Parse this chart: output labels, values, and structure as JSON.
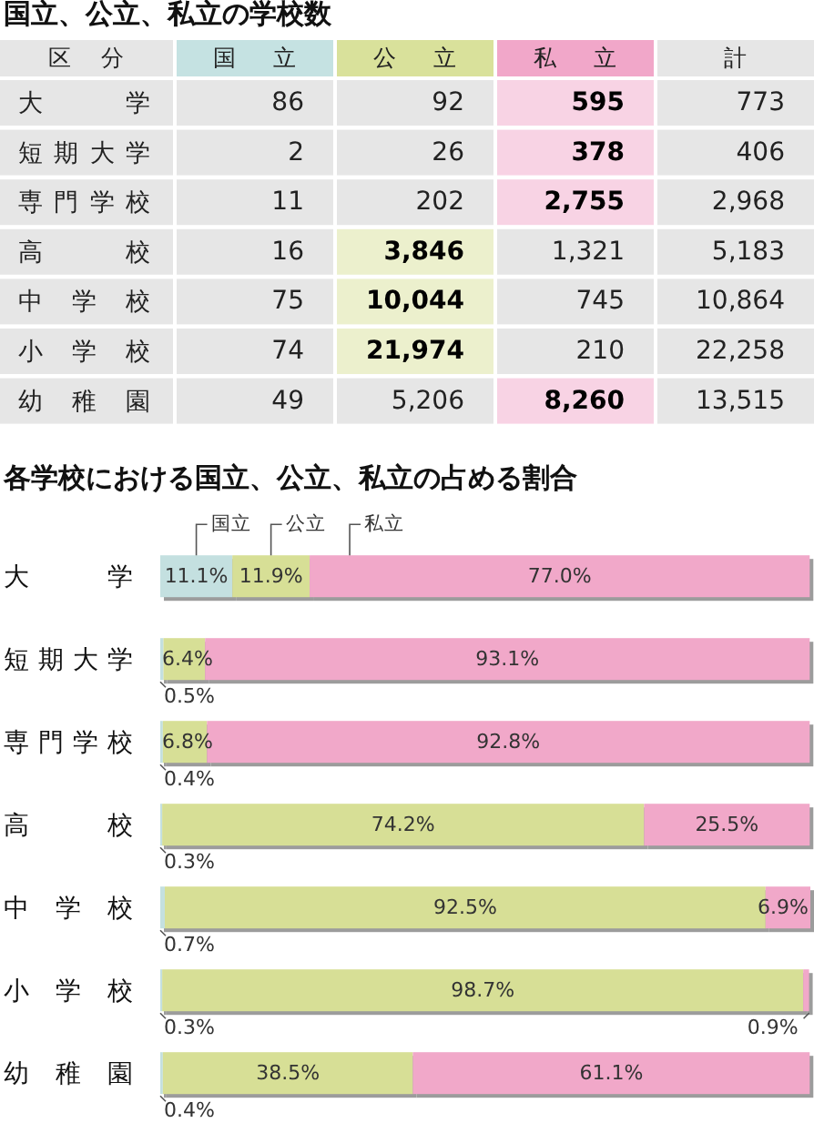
{
  "chart_data": [
    {
      "type": "heatmap",
      "title": "国立、公立、私立の学校数",
      "ylabel": "区分",
      "categories": [
        "国立",
        "公立",
        "私立",
        "計"
      ],
      "colors": [
        "#c5e2e2",
        "#d9e19b",
        "#f1a7c9",
        null
      ],
      "y_categories": [
        "大学",
        "短期大学",
        "専門学校",
        "高校",
        "中学校",
        "小学校",
        "幼稚園"
      ],
      "cells": [
        [
          86,
          92,
          595,
          773
        ],
        [
          2,
          26,
          378,
          406
        ],
        [
          11,
          202,
          2755,
          2968
        ],
        [
          16,
          3846,
          1321,
          5183
        ],
        [
          75,
          10044,
          745,
          10864
        ],
        [
          74,
          21974,
          210,
          22258
        ],
        [
          49,
          5206,
          8260,
          13515
        ]
      ],
      "cell_labels": [
        [
          "86",
          "92",
          "595",
          "773"
        ],
        [
          "2",
          "26",
          "378",
          "406"
        ],
        [
          "11",
          "202",
          "2,755",
          "2,968"
        ],
        [
          "16",
          "3,846",
          "1,321",
          "5,183"
        ],
        [
          "75",
          "10,044",
          "745",
          "10,864"
        ],
        [
          "74",
          "21,974",
          "210",
          "22,258"
        ],
        [
          "49",
          "5,206",
          "8,260",
          "13,515"
        ]
      ]
    },
    {
      "type": "bar",
      "orientation": "horizontal",
      "stacked": true,
      "title": "各学校における国立、公立、私立の占める割合",
      "categories": [
        "大学",
        "短期大学",
        "専門学校",
        "高校",
        "中学校",
        "小学校",
        "幼稚園"
      ],
      "xlim": [
        0,
        100.1
      ],
      "series": [
        {
          "name": "国立",
          "color": "#c4e0e0",
          "values": [
            11.1,
            0.5,
            0.4,
            0.3,
            0.7,
            0.3,
            0.4
          ],
          "value_labels": [
            "11.1%",
            "0.5%",
            "0.4%",
            "0.3%",
            "0.7%",
            "0.3%",
            "0.4%"
          ]
        },
        {
          "name": "公立",
          "color": "#d7df96",
          "values": [
            11.9,
            6.4,
            6.8,
            74.2,
            92.5,
            98.7,
            38.5
          ],
          "value_labels": [
            "11.9%",
            "6.4%",
            "6.8%",
            "74.2%",
            "92.5%",
            "98.7%",
            "38.5%"
          ]
        },
        {
          "name": "私立",
          "color": "#f1a8c9",
          "values": [
            77.0,
            93.1,
            92.8,
            25.5,
            6.9,
            0.9,
            61.1
          ],
          "value_labels": [
            "77.0%",
            "93.1%",
            "92.8%",
            "25.5%",
            "6.9%",
            "0.9%",
            "61.1%"
          ]
        }
      ]
    }
  ]
}
